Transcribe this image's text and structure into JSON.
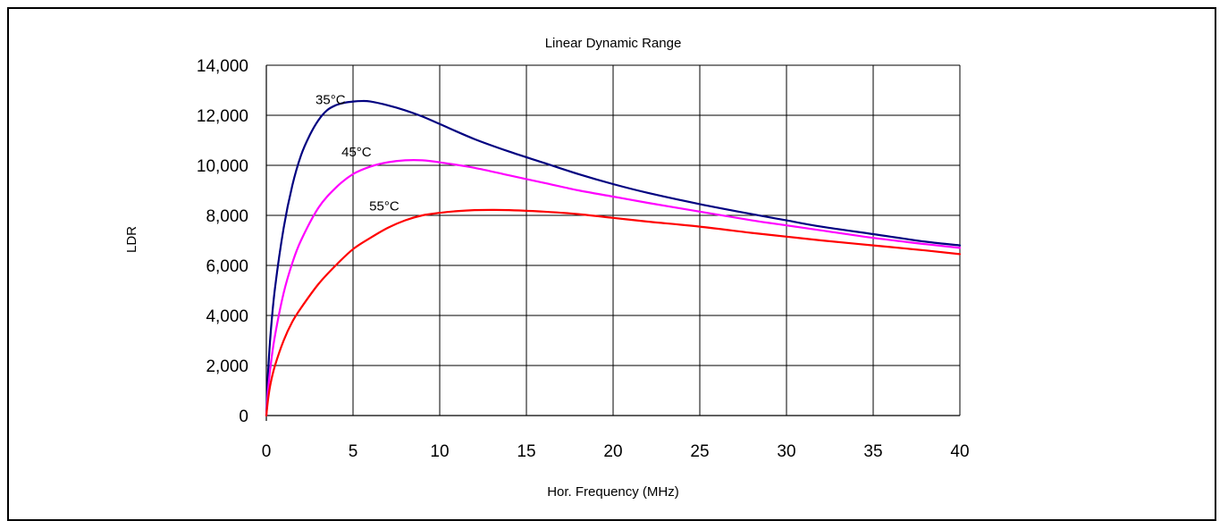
{
  "chart_data": {
    "type": "line",
    "title": "Linear Dynamic Range",
    "xlabel": "Hor. Frequency (MHz)",
    "ylabel": "LDR",
    "xlim": [
      0,
      40
    ],
    "ylim": [
      0,
      14000
    ],
    "x_ticks": [
      0,
      5,
      10,
      15,
      20,
      25,
      30,
      35,
      40
    ],
    "x_tick_labels": [
      "0",
      "5",
      "10",
      "15",
      "20",
      "25",
      "30",
      "35",
      "40"
    ],
    "y_ticks": [
      0,
      2000,
      4000,
      6000,
      8000,
      10000,
      12000,
      14000
    ],
    "y_tick_labels": [
      "0",
      "2,000",
      "4,000",
      "6,000",
      "8,000",
      "10,000",
      "12,000",
      "14,000"
    ],
    "grid": true,
    "legend": "none",
    "series": [
      {
        "name": "35°C",
        "color": "#000080",
        "points": [
          [
            0,
            0
          ],
          [
            0.1,
            1700
          ],
          [
            0.25,
            3300
          ],
          [
            0.5,
            5100
          ],
          [
            1,
            7500
          ],
          [
            1.5,
            9200
          ],
          [
            2,
            10400
          ],
          [
            2.5,
            11200
          ],
          [
            3,
            11800
          ],
          [
            3.5,
            12200
          ],
          [
            4,
            12400
          ],
          [
            4.5,
            12500
          ],
          [
            5,
            12550
          ],
          [
            5.5,
            12570
          ],
          [
            6,
            12550
          ],
          [
            7,
            12400
          ],
          [
            8,
            12200
          ],
          [
            9,
            11950
          ],
          [
            10,
            11650
          ],
          [
            12,
            11050
          ],
          [
            14,
            10550
          ],
          [
            16,
            10100
          ],
          [
            18,
            9650
          ],
          [
            20,
            9250
          ],
          [
            22,
            8900
          ],
          [
            25,
            8450
          ],
          [
            28,
            8050
          ],
          [
            30,
            7800
          ],
          [
            32,
            7550
          ],
          [
            35,
            7250
          ],
          [
            38,
            6950
          ],
          [
            40,
            6800
          ]
        ]
      },
      {
        "name": "45°C",
        "color": "#ff00ff",
        "points": [
          [
            0,
            0
          ],
          [
            0.1,
            1000
          ],
          [
            0.25,
            2000
          ],
          [
            0.5,
            3200
          ],
          [
            1,
            4900
          ],
          [
            1.5,
            6100
          ],
          [
            2,
            7000
          ],
          [
            3,
            8300
          ],
          [
            4,
            9100
          ],
          [
            5,
            9650
          ],
          [
            6,
            9950
          ],
          [
            7,
            10120
          ],
          [
            8,
            10200
          ],
          [
            9,
            10200
          ],
          [
            10,
            10120
          ],
          [
            12,
            9900
          ],
          [
            14,
            9600
          ],
          [
            16,
            9300
          ],
          [
            18,
            9000
          ],
          [
            20,
            8750
          ],
          [
            22,
            8500
          ],
          [
            25,
            8150
          ],
          [
            28,
            7800
          ],
          [
            30,
            7600
          ],
          [
            32,
            7400
          ],
          [
            35,
            7100
          ],
          [
            38,
            6850
          ],
          [
            40,
            6700
          ]
        ]
      },
      {
        "name": "55°C",
        "color": "#ff0000",
        "points": [
          [
            0,
            0
          ],
          [
            0.1,
            650
          ],
          [
            0.25,
            1300
          ],
          [
            0.5,
            2000
          ],
          [
            1,
            3000
          ],
          [
            1.5,
            3750
          ],
          [
            2,
            4300
          ],
          [
            3,
            5250
          ],
          [
            4,
            6000
          ],
          [
            5,
            6650
          ],
          [
            6,
            7100
          ],
          [
            7,
            7500
          ],
          [
            8,
            7800
          ],
          [
            9,
            8000
          ],
          [
            10,
            8100
          ],
          [
            11,
            8170
          ],
          [
            12,
            8210
          ],
          [
            13,
            8220
          ],
          [
            14,
            8210
          ],
          [
            16,
            8150
          ],
          [
            18,
            8050
          ],
          [
            20,
            7900
          ],
          [
            22,
            7750
          ],
          [
            25,
            7550
          ],
          [
            28,
            7300
          ],
          [
            30,
            7150
          ],
          [
            32,
            7000
          ],
          [
            35,
            6800
          ],
          [
            38,
            6600
          ],
          [
            40,
            6450
          ]
        ]
      }
    ],
    "annotations": [
      {
        "text": "35°C",
        "x": 3.7,
        "y": 12450
      },
      {
        "text": "45°C",
        "x": 5.2,
        "y": 10350
      },
      {
        "text": "55°C",
        "x": 6.8,
        "y": 8200
      }
    ]
  }
}
